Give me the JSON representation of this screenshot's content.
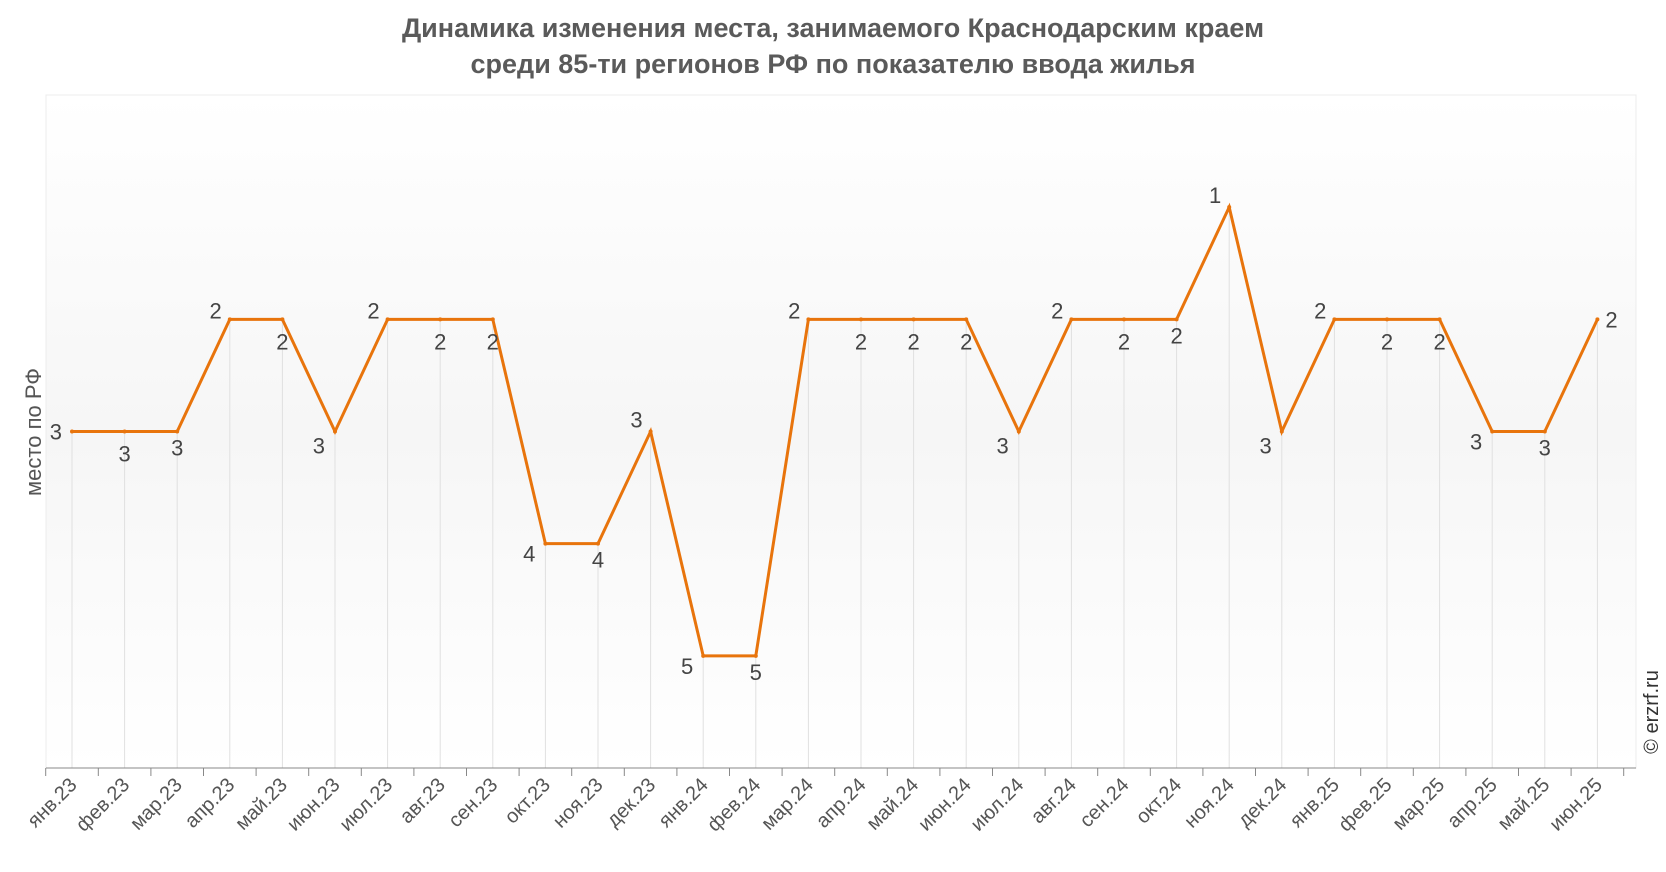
{
  "chart_data": {
    "type": "line",
    "title_line1": "Динамика изменения места, занимаемого Краснодарским краем",
    "title_line2": "среди 85-ти регионов РФ по показателю ввода жилья",
    "ylabel": "место по РФ",
    "xlabel": "",
    "y_axis_reversed": true,
    "ylim": [
      6,
      0
    ],
    "grid": "vertical",
    "categories": [
      "янв.23",
      "фев.23",
      "мар.23",
      "апр.23",
      "май.23",
      "июн.23",
      "июл.23",
      "авг.23",
      "сен.23",
      "окт.23",
      "ноя.23",
      "дек.23",
      "янв.24",
      "фев.24",
      "мар.24",
      "апр.24",
      "май.24",
      "июн.24",
      "июл.24",
      "авг.24",
      "сен.24",
      "окт.24",
      "ноя.24",
      "дек.24",
      "янв.25",
      "фев.25",
      "мар.25",
      "апр.25",
      "май.25",
      "июн.25"
    ],
    "series": [
      {
        "values": [
          3,
          3,
          3,
          2,
          2,
          3,
          2,
          2,
          2,
          4,
          4,
          3,
          5,
          5,
          2,
          2,
          2,
          2,
          3,
          2,
          2,
          2,
          1,
          3,
          2,
          2,
          2,
          3,
          3,
          2
        ],
        "color": "#e8740c"
      }
    ]
  },
  "credit": "© erzrf.ru",
  "colors": {
    "line": "#e8740c",
    "grid": "#e0e0e0",
    "axis": "#888888",
    "title": "#5a5a5a"
  }
}
